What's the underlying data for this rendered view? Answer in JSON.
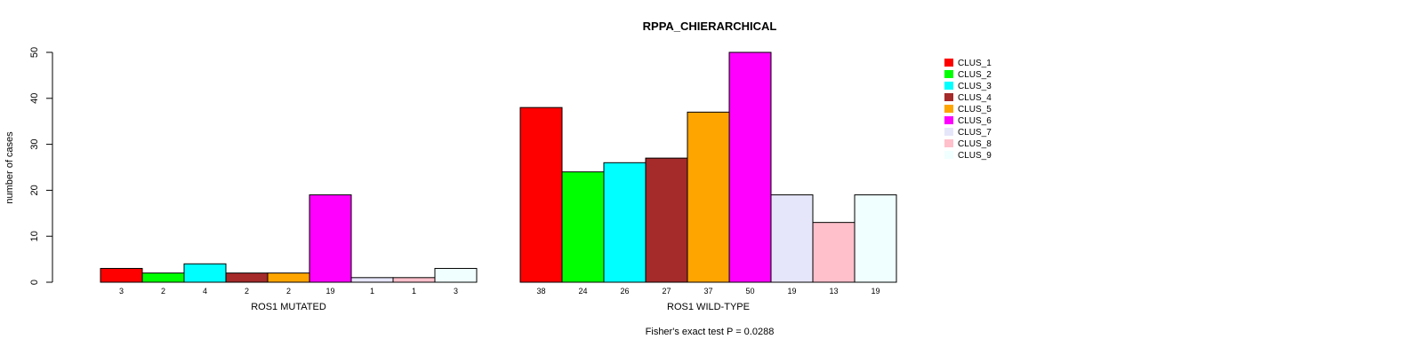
{
  "chart_data": {
    "type": "bar",
    "title": "RPPA_CHIERARCHICAL",
    "ylabel": "number of cases",
    "ylim": [
      0,
      50
    ],
    "yticks": [
      0,
      10,
      20,
      30,
      40,
      50
    ],
    "footnote": "Fisher's exact test P = 0.0288",
    "legend_position": "right",
    "series": [
      {
        "name": "CLUS_1",
        "color": "#ff0000"
      },
      {
        "name": "CLUS_2",
        "color": "#00ff00"
      },
      {
        "name": "CLUS_3",
        "color": "#00ffff"
      },
      {
        "name": "CLUS_4",
        "color": "#a52a2a"
      },
      {
        "name": "CLUS_5",
        "color": "#ffa500"
      },
      {
        "name": "CLUS_6",
        "color": "#ff00ff"
      },
      {
        "name": "CLUS_7",
        "color": "#e6e6fa"
      },
      {
        "name": "CLUS_8",
        "color": "#ffc0cb"
      },
      {
        "name": "CLUS_9",
        "color": "#f0ffff"
      }
    ],
    "groups": [
      {
        "label": "ROS1 MUTATED",
        "values": [
          3,
          2,
          4,
          2,
          2,
          19,
          1,
          1,
          3
        ]
      },
      {
        "label": "ROS1 WILD-TYPE",
        "values": [
          38,
          24,
          26,
          27,
          37,
          50,
          19,
          13,
          19
        ]
      }
    ]
  }
}
